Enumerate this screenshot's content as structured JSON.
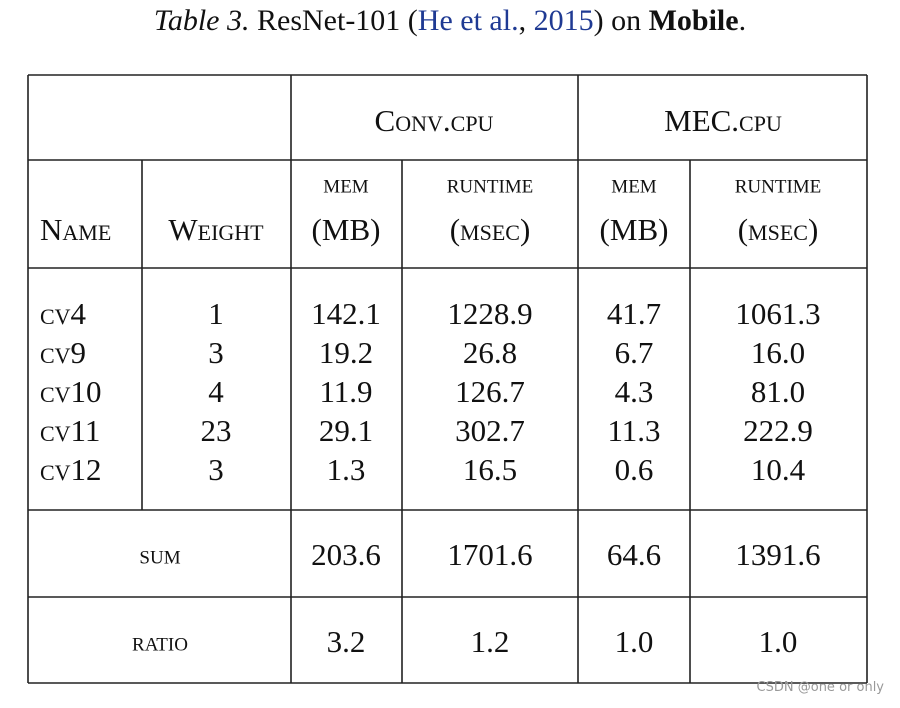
{
  "caption": {
    "label": "Table 3.",
    "text": "ResNet-101 (",
    "cite_authors": "He et al.",
    "cite_sep": ", ",
    "cite_year": "2015",
    "text_after": ") on ",
    "device": "Mobile",
    "end": "."
  },
  "table": {
    "groups": [
      "Conv.cpu",
      "MEC.cpu"
    ],
    "columns": [
      [
        "Name"
      ],
      [
        "Weight"
      ],
      [
        "mem",
        "(MB)"
      ],
      [
        "runtime",
        "(msec)"
      ],
      [
        "mem",
        "(MB)"
      ],
      [
        "runtime",
        "(msec)"
      ]
    ],
    "rows": [
      [
        "cv4",
        "1",
        "142.1",
        "1228.9",
        "41.7",
        "1061.3"
      ],
      [
        "cv9",
        "3",
        "19.2",
        "26.8",
        "6.7",
        "16.0"
      ],
      [
        "cv10",
        "4",
        "11.9",
        "126.7",
        "4.3",
        "81.0"
      ],
      [
        "cv11",
        "23",
        "29.1",
        "302.7",
        "11.3",
        "222.9"
      ],
      [
        "cv12",
        "3",
        "1.3",
        "16.5",
        "0.6",
        "10.4"
      ]
    ],
    "sum": {
      "label": "sum",
      "values": [
        "203.6",
        "1701.6",
        "64.6",
        "1391.6"
      ]
    },
    "ratio": {
      "label": "ratio",
      "values": [
        "3.2",
        "1.2",
        "1.0",
        "1.0"
      ]
    }
  },
  "watermark": "CSDN @one or only"
}
